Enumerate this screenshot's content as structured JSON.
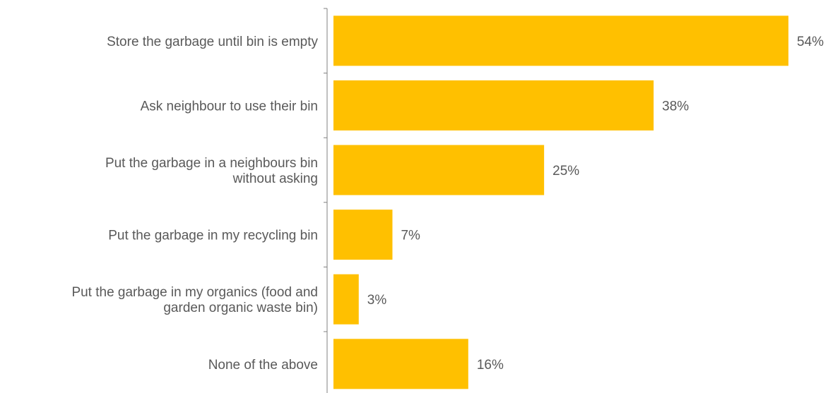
{
  "chart_data": {
    "type": "bar",
    "orientation": "horizontal",
    "categories": [
      [
        "Store the garbage until bin is empty"
      ],
      [
        "Ask neighbour to use their bin"
      ],
      [
        "Put the garbage in a neighbours bin",
        "without asking"
      ],
      [
        "Put the garbage in my recycling bin"
      ],
      [
        "Put the garbage in my organics (food and",
        "garden organic waste bin)"
      ],
      [
        "None of the above"
      ]
    ],
    "values": [
      54,
      38,
      25,
      7,
      3,
      16
    ],
    "value_labels": [
      "54%",
      "38%",
      "25%",
      "7%",
      "3%",
      "16%"
    ],
    "title": "",
    "xlabel": "",
    "ylabel": "",
    "xlim": [
      0,
      56
    ],
    "grid": false,
    "legend": "none",
    "colors": {
      "bar": "#FFC000",
      "axis": "#808080",
      "text": "#595959"
    }
  }
}
